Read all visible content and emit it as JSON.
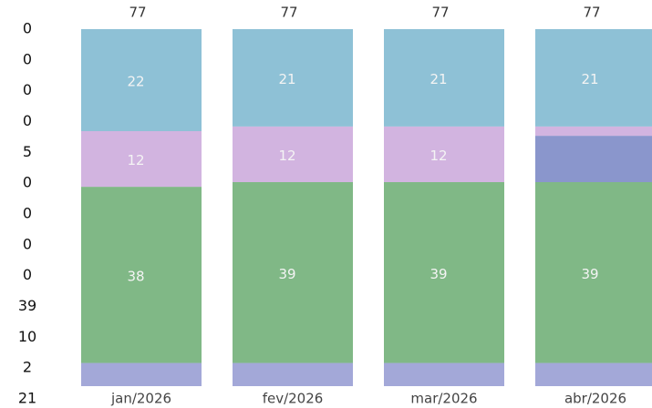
{
  "side_column": [
    0,
    0,
    0,
    0,
    5,
    0,
    0,
    0,
    0,
    39,
    10,
    2,
    21
  ],
  "chart_data": {
    "type": "stacked-bar",
    "categories": [
      "jan/2026",
      "fev/2026",
      "mar/2026",
      "abr/2026"
    ],
    "totals": [
      77,
      77,
      77,
      77
    ],
    "ylim": [
      0,
      77
    ],
    "series": [
      {
        "color": "#a3a8d8",
        "values": [
          5,
          5,
          5,
          5
        ],
        "value_labels": [
          null,
          null,
          null,
          null
        ]
      },
      {
        "color": "#80b886",
        "values": [
          38,
          39,
          39,
          39
        ],
        "value_labels": [
          "38",
          "39",
          "39",
          "39"
        ]
      },
      {
        "color": "#8a96cc",
        "values": [
          0,
          0,
          0,
          10
        ],
        "value_labels": [
          null,
          null,
          null,
          null
        ]
      },
      {
        "color": "#d2b4e0",
        "values": [
          12,
          12,
          12,
          2
        ],
        "value_labels": [
          "12",
          "12",
          "12",
          null
        ]
      },
      {
        "color": "#8ec1d6",
        "values": [
          22,
          21,
          21,
          21
        ],
        "value_labels": [
          "22",
          "21",
          "21",
          "21"
        ]
      }
    ]
  }
}
